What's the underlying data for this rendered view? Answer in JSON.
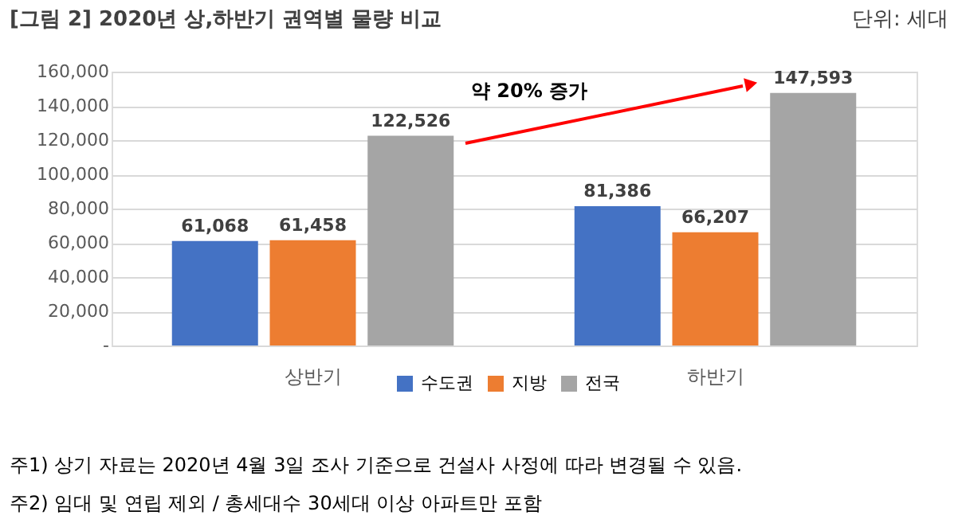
{
  "chart_data": {
    "type": "bar",
    "title": "[그림 2] 2020년 상,하반기 권역별 물량 비교",
    "categories": [
      "상반기",
      "하반기"
    ],
    "series": [
      {
        "name": "수도권",
        "color": "#4472c4",
        "values": [
          61068,
          81386
        ],
        "value_labels": [
          "61,068",
          "81,386"
        ]
      },
      {
        "name": "지방",
        "color": "#ed7d31",
        "values": [
          61458,
          66207
        ],
        "value_labels": [
          "61,458",
          "66,207"
        ]
      },
      {
        "name": "전국",
        "color": "#a5a5a5",
        "values": [
          122526,
          147593
        ],
        "value_labels": [
          "122,526",
          "147,593"
        ]
      }
    ],
    "ylim": [
      0,
      160000
    ],
    "yticks": [
      {
        "value": 0,
        "label": "-"
      },
      {
        "value": 20000,
        "label": "20,000"
      },
      {
        "value": 40000,
        "label": "40,000"
      },
      {
        "value": 60000,
        "label": "60,000"
      },
      {
        "value": 80000,
        "label": "80,000"
      },
      {
        "value": 100000,
        "label": "100,000"
      },
      {
        "value": 120000,
        "label": "120,000"
      },
      {
        "value": 140000,
        "label": "140,000"
      },
      {
        "value": 160000,
        "label": "160,000"
      }
    ],
    "grid": "y",
    "legend": "bottom",
    "annotations": [
      "단위: 세대",
      "약 20% 증가",
      "주1) 상기 자료는 2020년 4월 3일 조사 기준으로 건설사 사정에 따라 변경될 수 있음.",
      "주2) 임대 및 연립 제외 / 총세대수 30세대 이상 아파트만 포함"
    ]
  }
}
